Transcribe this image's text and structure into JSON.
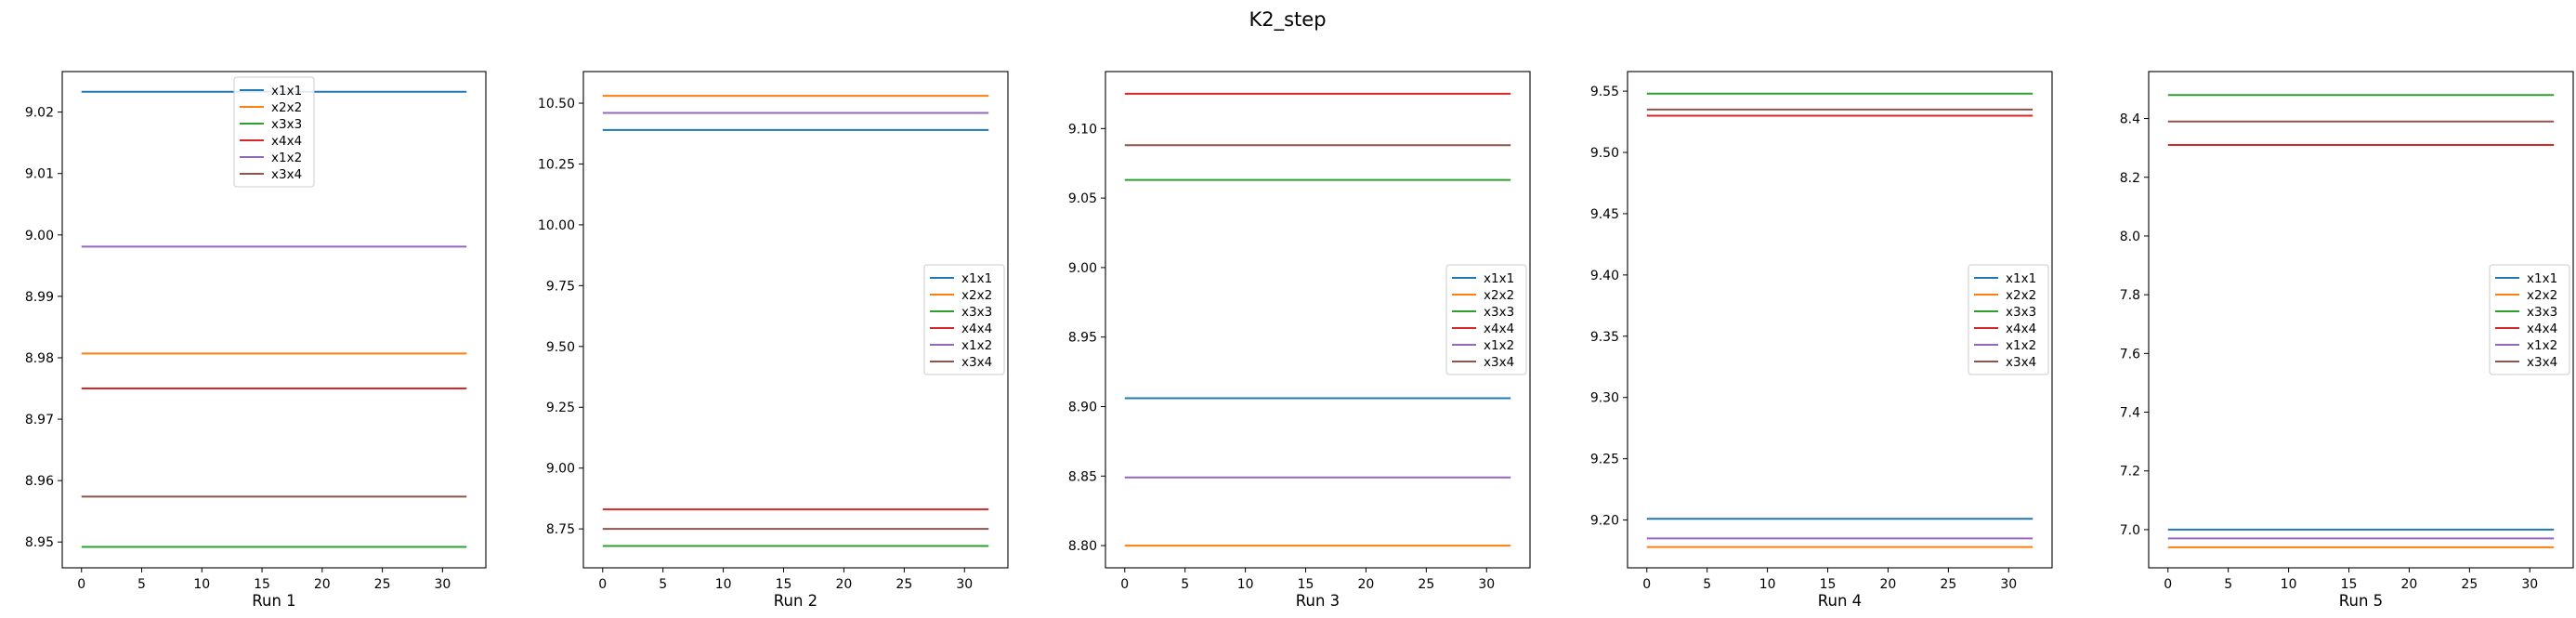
{
  "figure": {
    "title": "K2_step"
  },
  "colors": {
    "x1x1": "#1f77b4",
    "x2x2": "#ff7f0e",
    "x3x3": "#2ca02c",
    "x4x4": "#d62728",
    "x1x2": "#9467bd",
    "x3x4": "#8c564b"
  },
  "chart_data": [
    {
      "type": "line",
      "xlabel": "Run 1",
      "x_range": [
        0,
        32
      ],
      "xticks": [
        0,
        5,
        10,
        15,
        20,
        25,
        30
      ],
      "ylim": [
        8.9458,
        9.0266
      ],
      "yticks": [
        8.95,
        8.96,
        8.97,
        8.98,
        8.99,
        9.0,
        9.01,
        9.02
      ],
      "ytick_decimals": 2,
      "legend": "upper-center",
      "series": [
        {
          "name": "x1x1",
          "values": [
            9.0233
          ]
        },
        {
          "name": "x2x2",
          "values": [
            8.9807
          ]
        },
        {
          "name": "x3x3",
          "values": [
            8.9492
          ]
        },
        {
          "name": "x4x4",
          "values": [
            8.975
          ]
        },
        {
          "name": "x1x2",
          "values": [
            8.9981
          ]
        },
        {
          "name": "x3x4",
          "values": [
            8.9574
          ]
        }
      ]
    },
    {
      "type": "line",
      "xlabel": "Run 2",
      "x_range": [
        0,
        32
      ],
      "xticks": [
        0,
        5,
        10,
        15,
        20,
        25,
        30
      ],
      "ylim": [
        8.59,
        10.63
      ],
      "yticks": [
        8.75,
        9.0,
        9.25,
        9.5,
        9.75,
        10.0,
        10.25,
        10.5
      ],
      "ytick_decimals": 2,
      "legend": "center-right",
      "series": [
        {
          "name": "x1x1",
          "values": [
            10.39
          ]
        },
        {
          "name": "x2x2",
          "values": [
            10.53
          ]
        },
        {
          "name": "x3x3",
          "values": [
            8.68
          ]
        },
        {
          "name": "x4x4",
          "values": [
            8.83
          ]
        },
        {
          "name": "x1x2",
          "values": [
            10.46
          ]
        },
        {
          "name": "x3x4",
          "values": [
            8.75
          ]
        }
      ]
    },
    {
      "type": "line",
      "xlabel": "Run 3",
      "x_range": [
        0,
        32
      ],
      "xticks": [
        0,
        5,
        10,
        15,
        20,
        25,
        30
      ],
      "ylim": [
        8.784,
        9.141
      ],
      "yticks": [
        8.8,
        8.85,
        8.9,
        8.95,
        9.0,
        9.05,
        9.1
      ],
      "ytick_decimals": 2,
      "legend": "center-right",
      "series": [
        {
          "name": "x1x1",
          "values": [
            8.906
          ]
        },
        {
          "name": "x2x2",
          "values": [
            8.8
          ]
        },
        {
          "name": "x3x3",
          "values": [
            9.063
          ]
        },
        {
          "name": "x4x4",
          "values": [
            9.125
          ]
        },
        {
          "name": "x1x2",
          "values": [
            8.849
          ]
        },
        {
          "name": "x3x4",
          "values": [
            9.088
          ]
        }
      ]
    },
    {
      "type": "line",
      "xlabel": "Run 4",
      "x_range": [
        0,
        32
      ],
      "xticks": [
        0,
        5,
        10,
        15,
        20,
        25,
        30
      ],
      "ylim": [
        9.161,
        9.566
      ],
      "yticks": [
        9.2,
        9.25,
        9.3,
        9.35,
        9.4,
        9.45,
        9.5,
        9.55
      ],
      "ytick_decimals": 2,
      "legend": "center-right",
      "series": [
        {
          "name": "x1x1",
          "values": [
            9.201
          ]
        },
        {
          "name": "x2x2",
          "values": [
            9.178
          ]
        },
        {
          "name": "x3x3",
          "values": [
            9.548
          ]
        },
        {
          "name": "x4x4",
          "values": [
            9.53
          ]
        },
        {
          "name": "x1x2",
          "values": [
            9.185
          ]
        },
        {
          "name": "x3x4",
          "values": [
            9.535
          ]
        }
      ]
    },
    {
      "type": "line",
      "xlabel": "Run 5",
      "x_range": [
        0,
        32
      ],
      "xticks": [
        0,
        5,
        10,
        15,
        20,
        25,
        30
      ],
      "ylim": [
        6.87,
        8.56
      ],
      "yticks": [
        7.0,
        7.2,
        7.4,
        7.6,
        7.8,
        8.0,
        8.2,
        8.4
      ],
      "ytick_decimals": 1,
      "legend": "center-right",
      "series": [
        {
          "name": "x1x1",
          "values": [
            7.0
          ]
        },
        {
          "name": "x2x2",
          "values": [
            6.94
          ]
        },
        {
          "name": "x3x3",
          "values": [
            8.48
          ]
        },
        {
          "name": "x4x4",
          "values": [
            8.31
          ]
        },
        {
          "name": "x1x2",
          "values": [
            6.97
          ]
        },
        {
          "name": "x3x4",
          "values": [
            8.39
          ]
        }
      ]
    }
  ]
}
